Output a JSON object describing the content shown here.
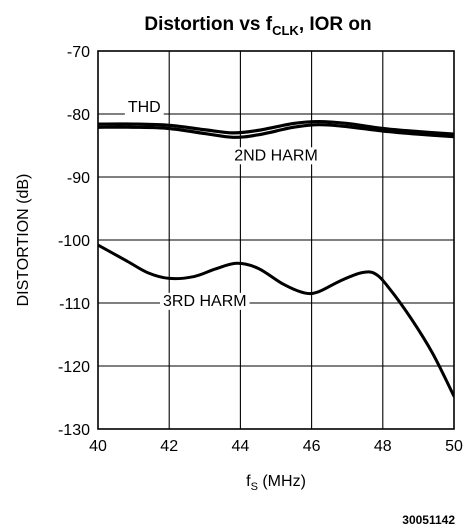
{
  "chart_data": {
    "type": "line",
    "title": {
      "main": "Distortion vs f",
      "sub": "CLK",
      "rest": ", IOR on"
    },
    "xlabel": {
      "main": "f",
      "sub": "S",
      "rest": " (MHz)"
    },
    "ylabel": "DISTORTION (dB)",
    "xlim": [
      40,
      50
    ],
    "ylim": [
      -130,
      -70
    ],
    "xticks": [
      40,
      42,
      44,
      46,
      48,
      50
    ],
    "yticks": [
      -70,
      -80,
      -90,
      -100,
      -110,
      -120,
      -130
    ],
    "xtick_labels": [
      "40",
      "42",
      "44",
      "46",
      "48",
      "50"
    ],
    "ytick_labels": [
      "-70",
      "-80",
      "-90",
      "-100",
      "-110",
      "-120",
      "-130"
    ],
    "grid": true,
    "series": [
      {
        "name": "THD",
        "x": [
          40,
          41,
          42,
          43,
          43.8,
          44.5,
          45.5,
          46.2,
          47,
          48,
          49,
          50
        ],
        "y": [
          -81.6,
          -81.6,
          -81.8,
          -82.5,
          -83.0,
          -82.6,
          -81.5,
          -81.2,
          -81.5,
          -82.3,
          -82.8,
          -83.2
        ]
      },
      {
        "name": "2ND HARM",
        "x": [
          40,
          41,
          42,
          43,
          43.8,
          44.5,
          45.5,
          46.2,
          47,
          48,
          49,
          50
        ],
        "y": [
          -82.1,
          -82.1,
          -82.3,
          -83.1,
          -83.7,
          -83.3,
          -82.1,
          -81.7,
          -82.0,
          -82.7,
          -83.2,
          -83.6
        ]
      },
      {
        "name": "3RD HARM",
        "x": [
          40,
          40.8,
          41.4,
          42,
          42.7,
          43.3,
          43.9,
          44.5,
          45.2,
          45.8,
          46.2,
          46.8,
          47.4,
          47.8,
          48.2,
          48.8,
          49.4,
          50
        ],
        "y": [
          -100.8,
          -103.3,
          -105.2,
          -106.1,
          -105.8,
          -104.6,
          -103.7,
          -104.5,
          -107.0,
          -108.4,
          -108.2,
          -106.5,
          -105.2,
          -105.4,
          -107.8,
          -112.5,
          -118.0,
          -124.8
        ]
      }
    ],
    "annotations": [
      {
        "text": "THD",
        "series": "THD",
        "x": 41.3,
        "y": -78.7
      },
      {
        "text": "2ND HARM",
        "series": "2ND HARM",
        "x": 45.0,
        "y": -86.4
      },
      {
        "text": "3RD HARM",
        "series": "3RD HARM",
        "x": 43.0,
        "y": -109.5
      }
    ],
    "figure_id": "30051142"
  }
}
